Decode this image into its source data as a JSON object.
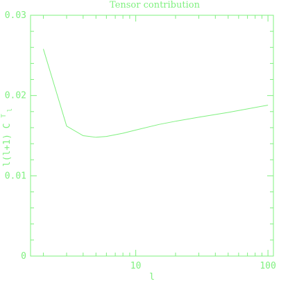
{
  "chart_data": {
    "type": "line",
    "title": "Tensor contribution",
    "xlabel": "l",
    "ylabel": "l(l+1) C",
    "ylabel_superscript": "T",
    "ylabel_subscript": "l",
    "xscale": "log",
    "xlim": [
      1.6,
      110
    ],
    "ylim": [
      0,
      0.03
    ],
    "x_major_ticks": [
      10,
      100
    ],
    "x_tick_labels": [
      "10",
      "100"
    ],
    "y_ticks": [
      0,
      0.01,
      0.02,
      0.03
    ],
    "y_tick_labels": [
      "0",
      "0.01",
      "0.02",
      "0.03"
    ],
    "grid": false,
    "colors": {
      "line": "#7ff07f",
      "axes": "#7ff07f",
      "text": "#7ff07f",
      "background": "#ffffff"
    },
    "series": [
      {
        "x": [
          2,
          3,
          4,
          5,
          6,
          8,
          10,
          15,
          20,
          30,
          50,
          100
        ],
        "y": [
          0.0258,
          0.0162,
          0.015,
          0.0148,
          0.0149,
          0.0153,
          0.0157,
          0.0164,
          0.0168,
          0.0173,
          0.0179,
          0.0188
        ]
      }
    ]
  }
}
